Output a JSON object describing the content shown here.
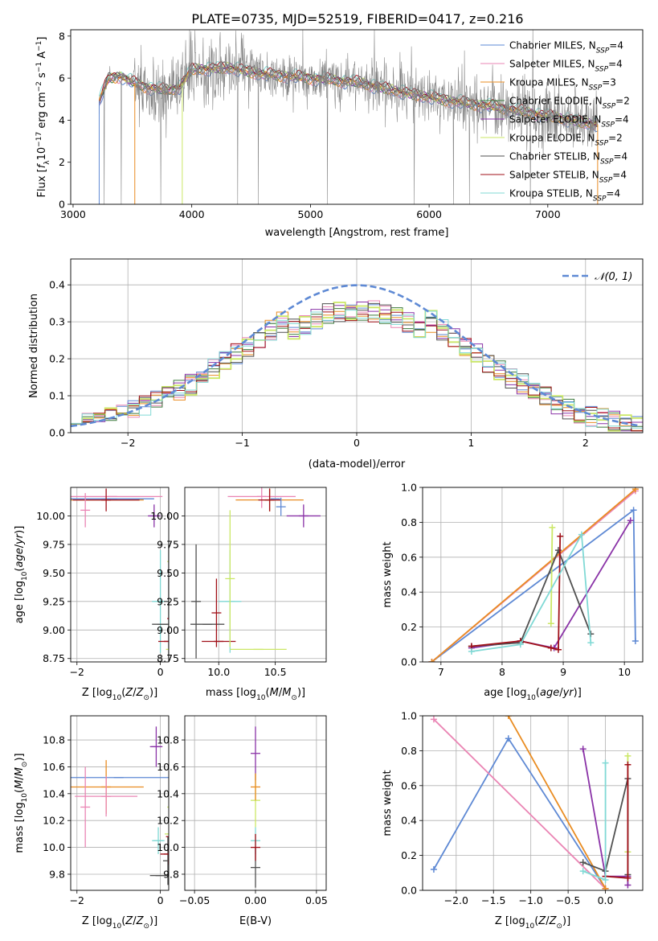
{
  "title": "PLATE=0735, MJD=52519, FIBERID=0417, z=0.216",
  "series_colors": [
    "#5e89d4",
    "#ea85b4",
    "#e98c22",
    "#3c7a3c",
    "#8a33a7",
    "#cbe766",
    "#505050",
    "#a01018",
    "#80d9d5"
  ],
  "chart_data": [
    {
      "id": "spectrum",
      "type": "line",
      "xlabel": "wavelength [Angstrom, rest frame]",
      "ylabel": "Flux [f_λ 10^-17 erg cm^-2 s^-1 A^-1]",
      "xlim": [
        2980,
        7800
      ],
      "ylim": [
        0,
        8.3
      ],
      "xticks": [
        3000,
        4000,
        5000,
        6000,
        7000
      ],
      "yticks": [
        0,
        2,
        4,
        6,
        8
      ],
      "grid": false,
      "legend_position": "upper right",
      "data_color": "#808080",
      "data_x_range": [
        3220,
        7420
      ],
      "model_x_range": [
        3220,
        7420
      ],
      "continuum": {
        "x": [
          3220,
          3300,
          3400,
          3500,
          3600,
          3700,
          3800,
          3900,
          4000,
          4300,
          4600,
          5000,
          5400,
          5800,
          6200,
          6600,
          7000,
          7400
        ],
        "y": [
          4.9,
          6.0,
          6.1,
          5.8,
          5.6,
          5.5,
          5.4,
          5.6,
          6.4,
          6.5,
          6.2,
          6.0,
          5.8,
          5.3,
          4.9,
          4.6,
          4.2,
          3.8
        ]
      },
      "legend": [
        {
          "base": "Chabrier MILES, N",
          "sub": "SSP",
          "tail": "=4"
        },
        {
          "base": "Salpeter MILES, N",
          "sub": "SSP",
          "tail": "=4"
        },
        {
          "base": "Kroupa MILES, N",
          "sub": "SSP",
          "tail": "=3"
        },
        {
          "base": "Chabrier ELODIE, N",
          "sub": "SSP",
          "tail": "=2"
        },
        {
          "base": "Salpeter ELODIE, N",
          "sub": "SSP",
          "tail": "=4"
        },
        {
          "base": "Kroupa ELODIE, N",
          "sub": "SSP",
          "tail": "=2"
        },
        {
          "base": "Chabrier STELIB, N",
          "sub": "SSP",
          "tail": "=4"
        },
        {
          "base": "Salpeter STELIB, N",
          "sub": "SSP",
          "tail": "=4"
        },
        {
          "base": "Kroupa STELIB, N",
          "sub": "SSP",
          "tail": "=4"
        }
      ]
    },
    {
      "id": "residuals",
      "type": "line",
      "xlabel": "(data-model)/error",
      "ylabel": "Normed distribution",
      "xlim": [
        -2.5,
        2.5
      ],
      "ylim": [
        0,
        0.47
      ],
      "xticks": [
        -2,
        -1,
        0,
        1,
        2
      ],
      "yticks": [
        0.0,
        0.1,
        0.2,
        0.3,
        0.4
      ],
      "grid": true,
      "legend_position": "upper right",
      "legend": "𝒩(0, 1)",
      "gaussian": {
        "mu": 0,
        "sigma": 1,
        "color": "#5e89d4"
      },
      "bin_width": 0.1
    },
    {
      "id": "age-vs-Z",
      "type": "scatter",
      "xlabel": "Z [log10(Z/Z⊙)]",
      "ylabel": "age [log10(age/yr)]",
      "xlim": [
        -2.15,
        0.2
      ],
      "ylim": [
        8.72,
        10.25
      ],
      "xticks": [
        -2,
        0
      ],
      "yticks": [
        8.75,
        9.0,
        9.25,
        9.5,
        9.75,
        10.0
      ],
      "grid": true,
      "points": [
        {
          "s": 0,
          "x": -1.15,
          "y": 10.15,
          "xerr": 1.0,
          "yerr": 0.0
        },
        {
          "s": 1,
          "x": -1.15,
          "y": 10.17,
          "xerr": 1.2,
          "yerr": 0.0
        },
        {
          "s": 2,
          "x": -1.3,
          "y": 10.14,
          "xerr": 0.9,
          "yerr": 0.0
        },
        {
          "s": 7,
          "x": -1.3,
          "y": 10.14,
          "xerr": 0.8,
          "yerr": 0.1
        },
        {
          "s": 1,
          "x": -1.8,
          "y": 10.05,
          "xerr": 0.0,
          "yerr": 0.15
        },
        {
          "s": 4,
          "x": -0.15,
          "y": 10.0,
          "xerr": 0.15,
          "yerr": 0.1
        },
        {
          "s": 5,
          "x": 0.28,
          "y": 9.6,
          "xerr": 0.0,
          "yerr": 0.45
        },
        {
          "s": 8,
          "x": 0.0,
          "y": 9.25,
          "xerr": 0.2,
          "yerr": 0.45
        },
        {
          "s": 6,
          "x": 0.05,
          "y": 9.05,
          "xerr": 0.25,
          "yerr": 0.0
        },
        {
          "s": 6,
          "x": 0.2,
          "y": 9.25,
          "xerr": 0.0,
          "yerr": 0.5
        },
        {
          "s": 7,
          "x": 0.2,
          "y": 8.9,
          "xerr": 0.25,
          "yerr": 0.0
        },
        {
          "s": 7,
          "x": 0.28,
          "y": 9.1,
          "xerr": 0.0,
          "yerr": 0.4
        },
        {
          "s": 5,
          "x": 0.25,
          "y": 8.83,
          "xerr": 0.05,
          "yerr": 0.0
        }
      ]
    },
    {
      "id": "age-vs-mass",
      "type": "scatter",
      "xlabel": "mass [log10(M/M⊙)]",
      "ylabel": "",
      "xlim": [
        9.7,
        10.95
      ],
      "ylim": [
        8.72,
        10.25
      ],
      "xticks": [
        10.0,
        10.5
      ],
      "yticks": [
        8.75,
        9.0,
        9.25,
        9.5,
        9.75,
        10.0
      ],
      "grid": true,
      "points": [
        {
          "s": 0,
          "x": 10.5,
          "y": 10.15,
          "xerr": 0.0,
          "yerr": 0.0
        },
        {
          "s": 1,
          "x": 10.38,
          "y": 10.17,
          "xerr": 0.3,
          "yerr": 0.1
        },
        {
          "s": 2,
          "x": 10.45,
          "y": 10.14,
          "xerr": 0.3,
          "yerr": 0.1
        },
        {
          "s": 7,
          "x": 10.45,
          "y": 10.14,
          "xerr": 0.1,
          "yerr": 0.1
        },
        {
          "s": 0,
          "x": 10.55,
          "y": 10.08,
          "xerr": 0.0,
          "yerr": 0.08
        },
        {
          "s": 4,
          "x": 10.75,
          "y": 10.0,
          "xerr": 0.15,
          "yerr": 0.1
        },
        {
          "s": 6,
          "x": 9.9,
          "y": 9.05,
          "xerr": 0.15,
          "yerr": 0.0
        },
        {
          "s": 6,
          "x": 9.8,
          "y": 9.25,
          "xerr": 0.0,
          "yerr": 0.5
        },
        {
          "s": 7,
          "x": 10.0,
          "y": 8.9,
          "xerr": 0.15,
          "yerr": 0.0
        },
        {
          "s": 7,
          "x": 9.98,
          "y": 9.15,
          "xerr": 0.0,
          "yerr": 0.3
        },
        {
          "s": 8,
          "x": 10.1,
          "y": 9.25,
          "xerr": 0.1,
          "yerr": 0.45
        },
        {
          "s": 5,
          "x": 10.1,
          "y": 9.45,
          "xerr": 0.0,
          "yerr": 0.6
        },
        {
          "s": 5,
          "x": 10.35,
          "y": 8.83,
          "xerr": 0.25,
          "yerr": 0.0
        }
      ]
    },
    {
      "id": "weight-vs-age",
      "type": "line",
      "xlabel": "age [log10(age/yr)]",
      "ylabel": "mass weight",
      "xlim": [
        6.7,
        10.3
      ],
      "ylim": [
        0,
        1.0
      ],
      "xticks": [
        7,
        8,
        9,
        10
      ],
      "yticks": [
        0.0,
        0.2,
        0.4,
        0.6,
        0.8,
        1.0
      ],
      "grid": true,
      "series": [
        {
          "s": 0,
          "x": [
            6.85,
            10.15,
            10.18
          ],
          "y": [
            0.0,
            0.87,
            0.12
          ]
        },
        {
          "s": 1,
          "x": [
            6.85,
            10.18
          ],
          "y": [
            0.0,
            0.98
          ]
        },
        {
          "s": 2,
          "x": [
            6.85,
            10.18
          ],
          "y": [
            0.0,
            0.99
          ]
        },
        {
          "s": 4,
          "x": [
            7.5,
            8.3,
            8.85,
            10.1
          ],
          "y": [
            0.08,
            0.12,
            0.08,
            0.81
          ]
        },
        {
          "s": 5,
          "x": [
            8.8,
            8.82
          ],
          "y": [
            0.22,
            0.77
          ]
        },
        {
          "s": 6,
          "x": [
            7.5,
            8.3,
            8.92,
            9.45
          ],
          "y": [
            0.09,
            0.11,
            0.64,
            0.16
          ]
        },
        {
          "s": 7,
          "x": [
            7.5,
            8.3,
            8.8,
            8.92,
            8.95
          ],
          "y": [
            0.09,
            0.12,
            0.08,
            0.07,
            0.72
          ]
        },
        {
          "s": 8,
          "x": [
            7.5,
            8.3,
            9.3,
            9.45
          ],
          "y": [
            0.06,
            0.1,
            0.73,
            0.11
          ]
        }
      ]
    },
    {
      "id": "mass-vs-Z",
      "type": "scatter",
      "xlabel": "Z [log10(Z/Z⊙)]",
      "ylabel": "mass [log10(M/M⊙)]",
      "xlim": [
        -2.15,
        0.2
      ],
      "ylim": [
        9.68,
        10.98
      ],
      "xticks": [
        -2,
        0
      ],
      "yticks": [
        9.8,
        10.0,
        10.2,
        10.4,
        10.6,
        10.8
      ],
      "grid": true,
      "points": [
        {
          "s": 0,
          "x": -1.0,
          "y": 10.52,
          "xerr": 1.2,
          "yerr": 0.0
        },
        {
          "s": 2,
          "x": -1.3,
          "y": 10.45,
          "xerr": 0.9,
          "yerr": 0.2
        },
        {
          "s": 1,
          "x": -1.3,
          "y": 10.38,
          "xerr": 0.75,
          "yerr": 0.15
        },
        {
          "s": 1,
          "x": -1.8,
          "y": 10.3,
          "xerr": 0.0,
          "yerr": 0.3
        },
        {
          "s": 4,
          "x": -0.1,
          "y": 10.75,
          "xerr": 0.15,
          "yerr": 0.15
        },
        {
          "s": 5,
          "x": 0.28,
          "y": 10.3,
          "xerr": 0.0,
          "yerr": 0.3
        },
        {
          "s": 8,
          "x": -0.05,
          "y": 10.05,
          "xerr": 0.15,
          "yerr": 0.1
        },
        {
          "s": 6,
          "x": 0.0,
          "y": 9.79,
          "xerr": 0.25,
          "yerr": 0.0
        },
        {
          "s": 6,
          "x": 0.18,
          "y": 9.9,
          "xerr": 0.0,
          "yerr": 0.18
        },
        {
          "s": 7,
          "x": 0.2,
          "y": 9.95,
          "xerr": 0.2,
          "yerr": 0.08
        },
        {
          "s": 7,
          "x": 0.25,
          "y": 10.08,
          "xerr": 0.0,
          "yerr": 0.1
        },
        {
          "s": 5,
          "x": 0.22,
          "y": 10.1,
          "xerr": 0.05,
          "yerr": 0.0
        }
      ]
    },
    {
      "id": "mass-vs-ebv",
      "type": "scatter",
      "xlabel": "E(B-V)",
      "ylabel": "",
      "xlim": [
        -0.058,
        0.058
      ],
      "ylim": [
        9.68,
        10.98
      ],
      "xticks": [
        -0.05,
        0.0,
        0.05
      ],
      "yticks": [
        9.8,
        10.0,
        10.2,
        10.4,
        10.6,
        10.8
      ],
      "grid": true,
      "points": [
        {
          "s": 4,
          "x": 0.0,
          "y": 10.7,
          "xerr": 0.0,
          "yerr": 0.2
        },
        {
          "s": 5,
          "x": 0.0,
          "y": 10.35,
          "xerr": 0.0,
          "yerr": 0.2
        },
        {
          "s": 2,
          "x": 0.0,
          "y": 10.45,
          "xerr": 0.0,
          "yerr": 0.1
        },
        {
          "s": 8,
          "x": 0.0,
          "y": 10.05,
          "xerr": 0.0,
          "yerr": 0.1
        },
        {
          "s": 6,
          "x": 0.0,
          "y": 9.85,
          "xerr": 0.0,
          "yerr": 0.15
        },
        {
          "s": 7,
          "x": 0.0,
          "y": 10.0,
          "xerr": 0.0,
          "yerr": 0.1
        }
      ]
    },
    {
      "id": "weight-vs-Z",
      "type": "line",
      "xlabel": "Z [log10(Z/Z⊙)]",
      "ylabel": "mass weight",
      "xlim": [
        -2.45,
        0.5
      ],
      "ylim": [
        0,
        1.0
      ],
      "xticks": [
        -2.0,
        -1.5,
        -1.0,
        -0.5,
        0.0
      ],
      "yticks": [
        0.0,
        0.2,
        0.4,
        0.6,
        0.8,
        1.0
      ],
      "grid": true,
      "series": [
        {
          "s": 0,
          "x": [
            -2.3,
            -1.3,
            0.0
          ],
          "y": [
            0.12,
            0.87,
            0.01
          ]
        },
        {
          "s": 1,
          "x": [
            -2.3,
            0.0
          ],
          "y": [
            0.98,
            0.01
          ]
        },
        {
          "s": 2,
          "x": [
            -1.3,
            0.0
          ],
          "y": [
            1.0,
            0.01
          ]
        },
        {
          "s": 4,
          "x": [
            -0.3,
            0.0,
            0.3,
            0.3
          ],
          "y": [
            0.81,
            0.08,
            0.08,
            0.03
          ]
        },
        {
          "s": 5,
          "x": [
            0.3,
            0.3
          ],
          "y": [
            0.22,
            0.77
          ]
        },
        {
          "s": 6,
          "x": [
            -0.3,
            0.0,
            0.3,
            0.3
          ],
          "y": [
            0.16,
            0.11,
            0.64,
            0.09
          ]
        },
        {
          "s": 7,
          "x": [
            0.0,
            0.3,
            0.3
          ],
          "y": [
            0.08,
            0.07,
            0.72
          ]
        },
        {
          "s": 8,
          "x": [
            -0.3,
            0.0,
            0.0
          ],
          "y": [
            0.11,
            0.06,
            0.73
          ]
        }
      ]
    }
  ]
}
